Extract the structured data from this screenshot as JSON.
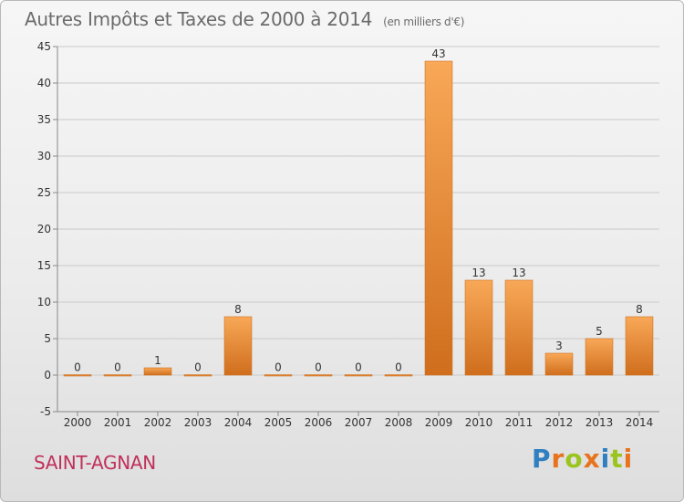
{
  "header": {
    "title": "Autres Impôts et Taxes de 2000 à 2014",
    "subtitle": "(en milliers d'€)"
  },
  "footer": {
    "commune": "SAINT-AGNAN",
    "logo_letters": [
      "P",
      "r",
      "o",
      "x",
      "i",
      "t",
      "i"
    ],
    "logo_colors": [
      "#2f7fc1",
      "#e8731c",
      "#9bc41f",
      "#e8731c",
      "#2f7fc1",
      "#9bc41f",
      "#e8731c"
    ]
  },
  "colors": {
    "bar_light": "#f8a857",
    "bar_dark": "#cf6e1d",
    "axis": "#888888",
    "grid": "#c9c9c9"
  },
  "chart_data": {
    "type": "bar",
    "title": "Autres Impôts et Taxes de 2000 à 2014",
    "subtitle": "(en milliers d'€)",
    "categories": [
      "2000",
      "2001",
      "2002",
      "2003",
      "2004",
      "2005",
      "2006",
      "2007",
      "2008",
      "2009",
      "2010",
      "2011",
      "2012",
      "2013",
      "2014"
    ],
    "values": [
      0,
      0,
      1,
      0,
      8,
      0,
      0,
      0,
      0,
      43,
      13,
      13,
      3,
      5,
      8
    ],
    "value_labels": [
      "0",
      "0",
      "1",
      "0",
      "8",
      "0",
      "0",
      "0",
      "0",
      "43",
      "13",
      "13",
      "3",
      "5",
      "8"
    ],
    "yticks": [
      -5,
      0,
      5,
      10,
      15,
      20,
      25,
      30,
      35,
      40,
      45
    ],
    "ytick_labels": [
      "-5",
      "0",
      "5",
      "10",
      "15",
      "20",
      "25",
      "30",
      "35",
      "40",
      "45"
    ],
    "ylim": [
      -5,
      45
    ],
    "xlabel": "",
    "ylabel": "",
    "grid": true,
    "legend": "none"
  }
}
